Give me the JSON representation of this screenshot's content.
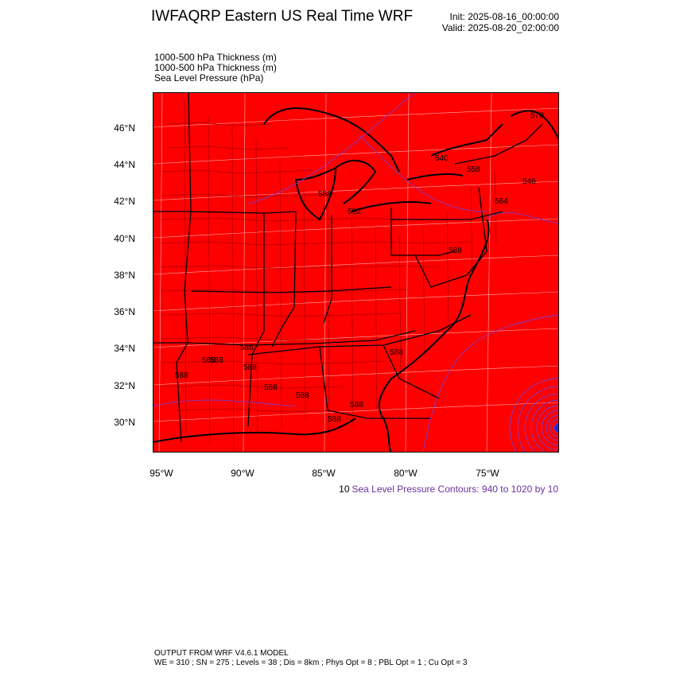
{
  "header": {
    "title": "IWFAQRP Eastern US Real Time WRF",
    "init": "Init: 2025-08-16_00:00:00",
    "valid": "Valid: 2025-08-20_02:00:00"
  },
  "fields": [
    "1000-500 hPa Thickness   (m)",
    "1000-500 hPa Thickness   (m)",
    "Sea Level Pressure   (hPa)"
  ],
  "map": {
    "fill_color": "#ff0000",
    "border_color": "#000000",
    "contour_color": "#7a3cc8",
    "low_center_color": "#1a2bd6",
    "lat_labels": [
      "46°N",
      "44°N",
      "42°N",
      "40°N",
      "38°N",
      "36°N",
      "34°N",
      "32°N",
      "30°N"
    ],
    "lon_labels": [
      "95°W",
      "90°W",
      "85°W",
      "80°W",
      "75°W"
    ],
    "thickness_labels": [
      "570",
      "540",
      "546",
      "564",
      "558",
      "588",
      "552",
      "588",
      "588",
      "588",
      "588",
      "588",
      "588",
      "588",
      "588",
      "588",
      "588",
      "588"
    ]
  },
  "contour_note": {
    "interval_label": "10",
    "text": "Sea Level Pressure Contours: 940 to 1020 by 10"
  },
  "footer": {
    "line1": "OUTPUT FROM WRF V4.6.1 MODEL",
    "line2": "WE = 310 ; SN = 275 ; Levels = 38 ; Dis = 8km ; Phys Opt = 8 ; PBL Opt = 1 ; Cu Opt = 3"
  }
}
